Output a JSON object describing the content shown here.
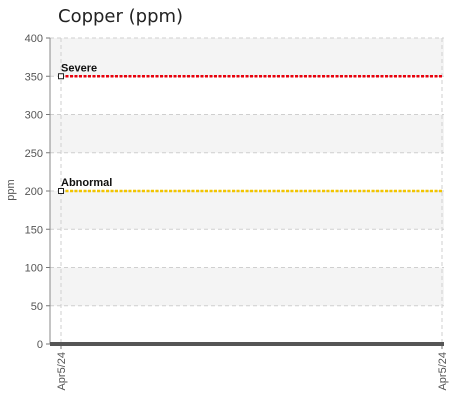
{
  "chart_data": {
    "type": "line",
    "title": "Copper (ppm)",
    "ylabel": "ppm",
    "xlabel": "",
    "ylim": [
      0,
      400
    ],
    "yticks": [
      0,
      50,
      100,
      150,
      200,
      250,
      300,
      350,
      400
    ],
    "x_categories": [
      "Apr5/24",
      "Apr5/24"
    ],
    "series": [
      {
        "values": [
          0,
          0
        ],
        "color": "#555555"
      }
    ],
    "thresholds": [
      {
        "label": "Severe",
        "value": 350,
        "color": "#e8000b"
      },
      {
        "label": "Abnormal",
        "value": 200,
        "color": "#f2c500"
      }
    ],
    "grid": true,
    "legend": "none"
  }
}
